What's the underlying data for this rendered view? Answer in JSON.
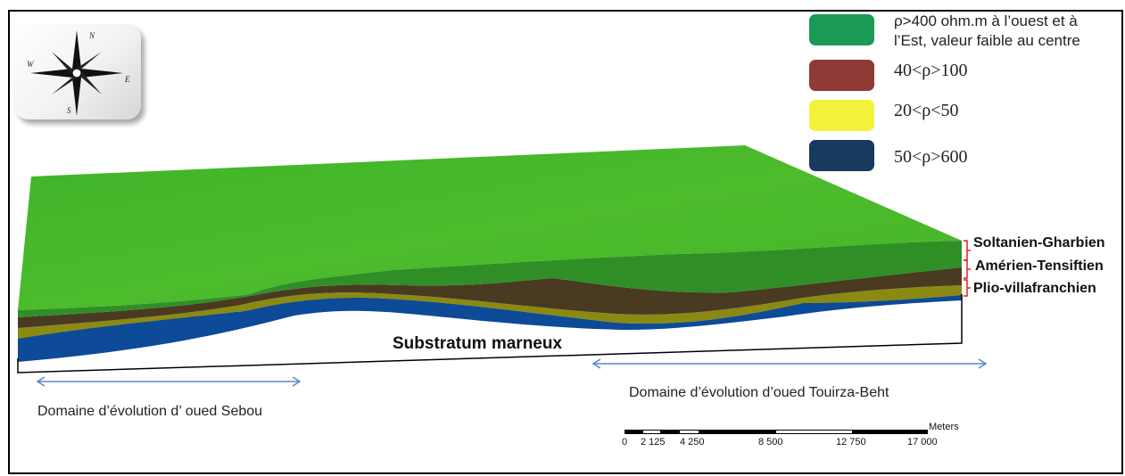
{
  "legend": {
    "items": [
      {
        "label": "ρ>400 ohm.m à l’ouest et à l’Est, valeur faible au centre",
        "color": "#199a55"
      },
      {
        "label": "40<ρ>100",
        "color": "#8e3a36"
      },
      {
        "label": "20<ρ<50",
        "color": "#f2f23c"
      },
      {
        "label": "50<ρ>600",
        "color": "#173a5e"
      }
    ]
  },
  "compass": {
    "north": "N",
    "south": "S",
    "east": "E",
    "west": "W"
  },
  "layers": {
    "soltanien": "Soltanien-Gharbien",
    "amerien": "Amérien-Tensiftien",
    "plio": "Plio-villafranchien",
    "substratum": "Substratum marneux"
  },
  "domains": {
    "sebou": "Domaine  d’évolution d’ oued Sebou",
    "touirza": "Domaine d’évolution d’oued Touirza-Beht"
  },
  "scale_bar": {
    "unit": "Meters",
    "ticks": [
      "0",
      "2 125",
      "4 250",
      "8 500",
      "12 750",
      "17 000"
    ]
  },
  "colors": {
    "top_surface": "#4cba2a",
    "soltanien": "#2f8f26",
    "amerien": "#4a3a22",
    "plio": "#8a8a12",
    "substratum": "#0d4a98",
    "arrow": "#5b87c6",
    "bracket": "#e02020"
  }
}
